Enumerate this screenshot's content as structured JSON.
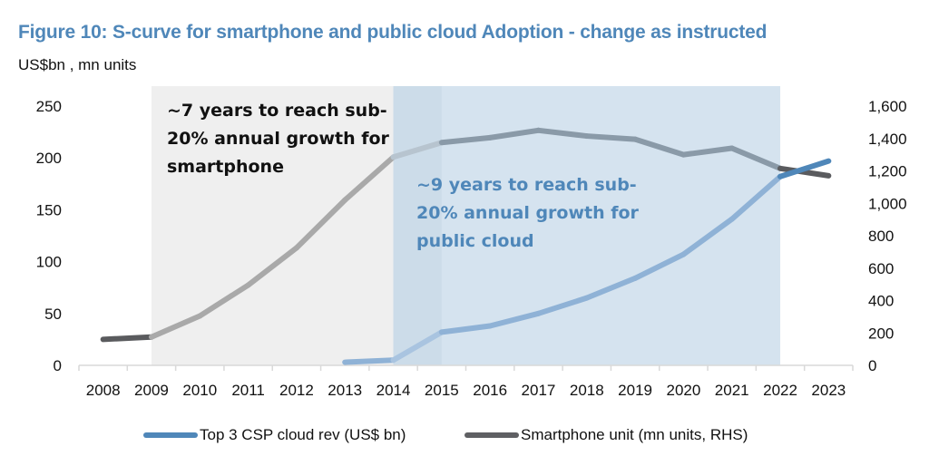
{
  "header": {
    "title": "Figure 10: S-curve for smartphone and public cloud Adoption - change as instructed",
    "units": "US$bn , mn units"
  },
  "colors": {
    "title": "#4f87b9",
    "cloud_line": "#4f87b9",
    "cloud_line_in_shade": "#8fb2d6",
    "cloud_line_overlap": "#a9c4e0",
    "smartphone_line": "#5a5b5e",
    "smartphone_line_in_grey_shade": "#a9a9a9",
    "smartphone_line_in_blue_shade": "#8a9aa8",
    "grey_shade": "#efefef",
    "blue_shade": "#d5e3ef",
    "overlap_shade": "#ccdce9",
    "annotation_cloud": "#4f87b9",
    "annotation_smartphone": "#111111"
  },
  "chart_data": {
    "type": "line",
    "title": "Figure 10: S-curve for smartphone and public cloud Adoption - change as instructed",
    "ylabel": "US$bn , mn units",
    "xlabel": "",
    "categories": [
      "2008",
      "2009",
      "2010",
      "2011",
      "2012",
      "2013",
      "2014",
      "2015",
      "2016",
      "2017",
      "2018",
      "2019",
      "2020",
      "2021",
      "2022",
      "2023"
    ],
    "series": [
      {
        "name": "Top 3 CSP cloud rev (US$ bn)",
        "axis": "left",
        "values": [
          null,
          null,
          null,
          null,
          null,
          3,
          5,
          32,
          38,
          50,
          65,
          84,
          107,
          141,
          182,
          197
        ]
      },
      {
        "name": "Smartphone unit (mn units, RHS)",
        "axis": "right",
        "values": [
          160,
          175,
          305,
          495,
          725,
          1020,
          1285,
          1375,
          1405,
          1450,
          1415,
          1395,
          1300,
          1340,
          1215,
          1170
        ]
      }
    ],
    "left_axis": {
      "ylim": [
        0,
        250
      ],
      "ticks": [
        "0",
        "50",
        "100",
        "150",
        "200",
        "250"
      ],
      "tick_values": [
        0,
        50,
        100,
        150,
        200,
        250
      ]
    },
    "right_axis": {
      "ylim": [
        0,
        1600
      ],
      "ticks": [
        "0",
        "200",
        "400",
        "600",
        "800",
        "1,000",
        "1,200",
        "1,400",
        "1,600"
      ],
      "tick_values": [
        0,
        200,
        400,
        600,
        800,
        1000,
        1200,
        1400,
        1600
      ]
    },
    "shaded_regions": [
      {
        "name": "smartphone-adoption-period",
        "from": "2009",
        "to": "2014",
        "label": "~7 years to reach sub-20% annual growth for smartphone"
      },
      {
        "name": "cloud-adoption-period",
        "from": "2014",
        "to": "2022",
        "label": "~9 years to reach sub-20% annual growth for public cloud"
      }
    ],
    "annotations": [
      {
        "lines": [
          "~7 years to reach sub-",
          "20% annual growth for",
          "smartphone"
        ]
      },
      {
        "lines": [
          "~9 years to reach sub-",
          "20% annual growth for",
          "public cloud"
        ]
      }
    ],
    "legend_position": "bottom",
    "grid": false
  },
  "legend": {
    "items": [
      {
        "label": "Top 3 CSP cloud rev (US$ bn)"
      },
      {
        "label": "Smartphone unit (mn units, RHS)"
      }
    ]
  }
}
